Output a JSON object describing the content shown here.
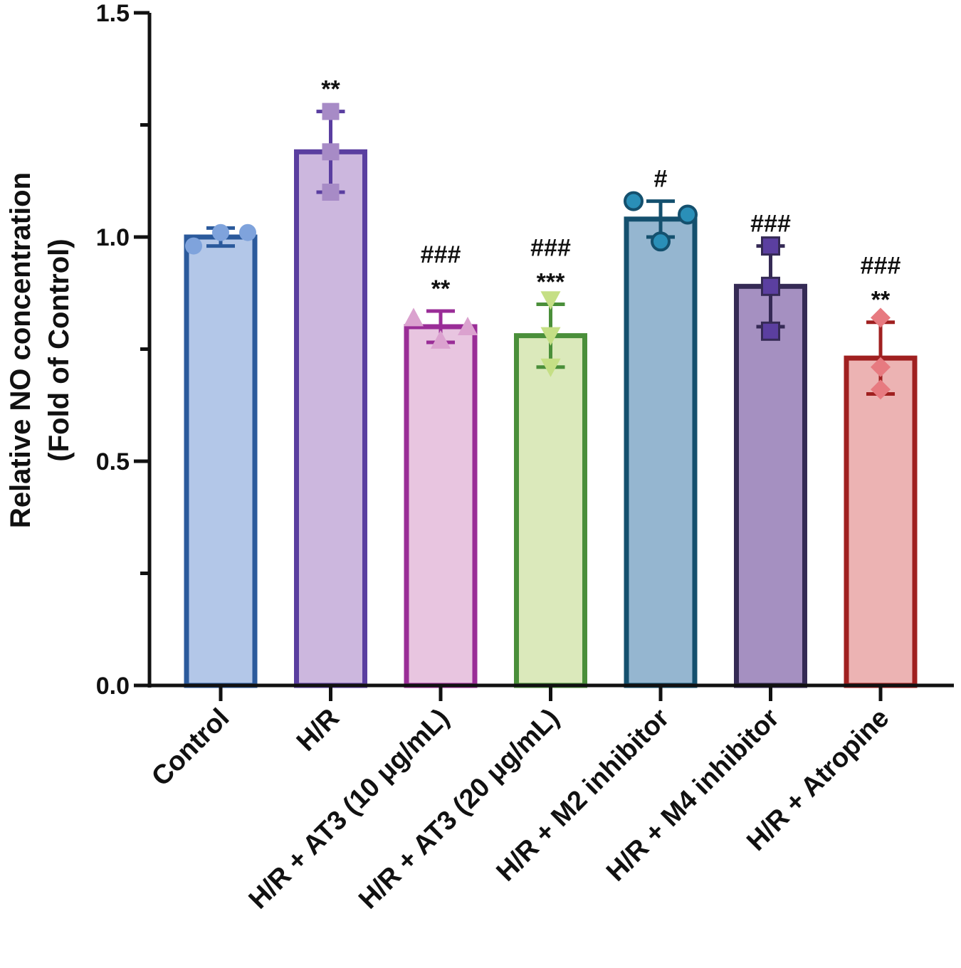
{
  "chart_data": {
    "type": "bar",
    "title": "",
    "xlabel": "",
    "ylabel_lines": [
      "Relative NO concentration",
      "(Fold of Control)"
    ],
    "ylim": [
      0,
      1.5
    ],
    "yticks": [
      0.0,
      0.5,
      1.0,
      1.5
    ],
    "ytick_labels": [
      "0.0",
      "0.5",
      "1.0",
      "1.5"
    ],
    "grid": false,
    "legend": "none",
    "categories": [
      "Control",
      "H/R",
      "H/R + AT3 (10 μg/mL)",
      "H/R + AT3 (20 μg/mL)",
      "H/R + M2 inhibitor",
      "H/R + M4 inhibitor",
      "H/R + Atropine"
    ],
    "values": [
      1.0,
      1.19,
      0.8,
      0.78,
      1.04,
      0.89,
      0.73
    ],
    "error": [
      0.02,
      0.09,
      0.035,
      0.07,
      0.04,
      0.09,
      0.08
    ],
    "points": [
      [
        0.98,
        1.01,
        1.01
      ],
      [
        1.28,
        1.19,
        1.1
      ],
      [
        0.82,
        0.77,
        0.8
      ],
      [
        0.86,
        0.78,
        0.71
      ],
      [
        1.08,
        1.05,
        0.99
      ],
      [
        0.98,
        0.89,
        0.79
      ],
      [
        0.82,
        0.71,
        0.66
      ]
    ],
    "markers": [
      "circle",
      "square",
      "triangle-up",
      "triangle-down",
      "circle",
      "square",
      "diamond"
    ],
    "fill_colors": [
      "#b3c7e8",
      "#ccb7de",
      "#e8c5e0",
      "#dbe9bb",
      "#95b6d0",
      "#a590c1",
      "#ecb3b3"
    ],
    "edge_colors": [
      "#2b5a9c",
      "#5a3ea0",
      "#9a2d97",
      "#4a8f3a",
      "#14506e",
      "#352a55",
      "#a02020"
    ],
    "marker_colors": [
      "#7fa3dc",
      "#a78bc6",
      "#dba2cf",
      "#c5df85",
      "#2a8fb8",
      "#5b3fa0",
      "#e77a80"
    ],
    "annotations": [
      [],
      [
        "**"
      ],
      [
        "###",
        "**"
      ],
      [
        "###",
        "***"
      ],
      [
        "#"
      ],
      [
        "###"
      ],
      [
        "###",
        "**"
      ]
    ]
  }
}
